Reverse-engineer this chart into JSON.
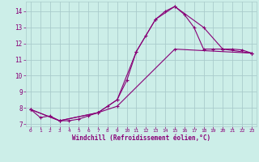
{
  "background_color": "#cceee8",
  "grid_color": "#aacccc",
  "line_color": "#880077",
  "xlabel": "Windchill (Refroidissement éolien,°C)",
  "xlim": [
    -0.5,
    23.5
  ],
  "ylim": [
    6.85,
    14.6
  ],
  "yticks": [
    7,
    8,
    9,
    10,
    11,
    12,
    13,
    14
  ],
  "xticks": [
    0,
    1,
    2,
    3,
    4,
    5,
    6,
    7,
    8,
    9,
    10,
    11,
    12,
    13,
    14,
    15,
    16,
    17,
    18,
    19,
    20,
    21,
    22,
    23
  ],
  "line1_x": [
    0,
    1,
    2,
    3,
    4,
    5,
    6,
    7,
    8,
    9,
    10,
    11,
    12,
    13,
    14,
    15,
    16,
    17,
    18,
    19,
    20,
    21,
    22,
    23
  ],
  "line1_y": [
    7.9,
    7.4,
    7.5,
    7.2,
    7.2,
    7.3,
    7.5,
    7.7,
    8.1,
    8.5,
    9.7,
    11.5,
    12.5,
    13.5,
    14.0,
    14.3,
    13.8,
    13.0,
    11.65,
    11.65,
    11.65,
    11.65,
    11.6,
    11.4
  ],
  "line2_x": [
    0,
    3,
    7,
    9,
    11,
    13,
    15,
    18,
    20,
    23
  ],
  "line2_y": [
    7.9,
    7.2,
    7.7,
    8.5,
    11.5,
    13.5,
    14.3,
    13.0,
    11.65,
    11.4
  ],
  "line3_x": [
    0,
    3,
    7,
    9,
    15,
    23
  ],
  "line3_y": [
    7.9,
    7.2,
    7.7,
    8.1,
    11.65,
    11.4
  ]
}
